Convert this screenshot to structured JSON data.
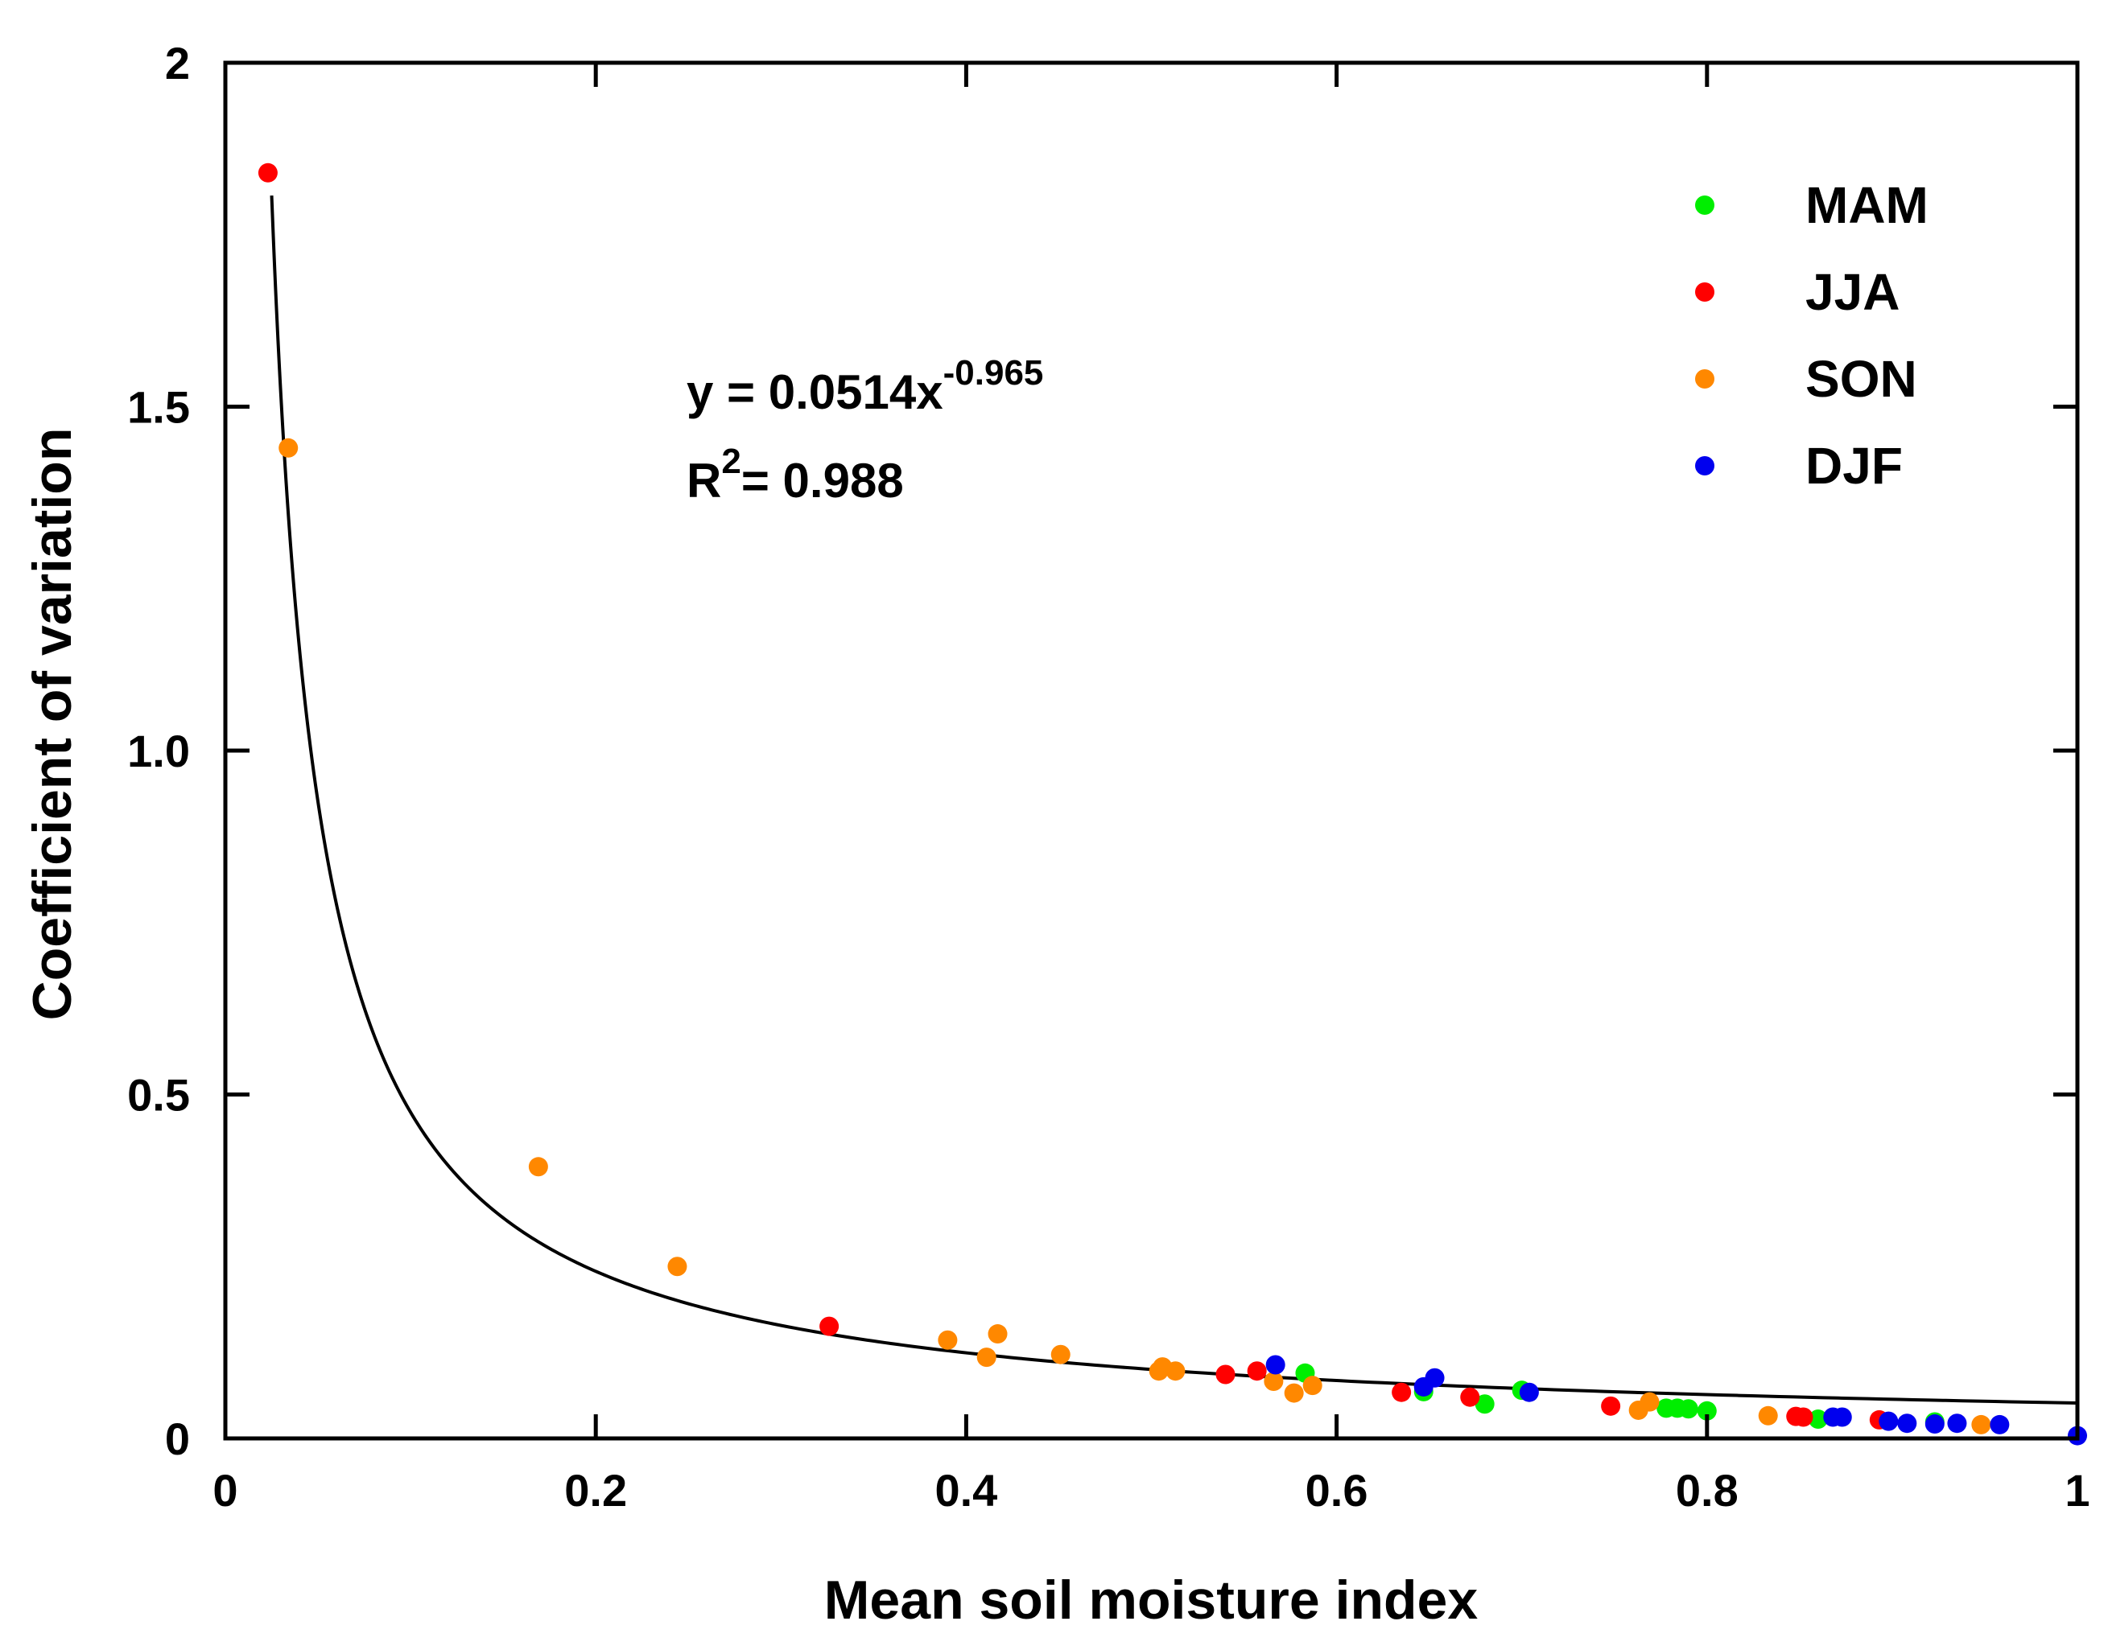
{
  "chart_data": {
    "type": "scatter",
    "title": "",
    "xlabel": "Mean soil moisture index",
    "ylabel": "Coefficient of variation",
    "xlim": [
      0,
      1
    ],
    "ylim": [
      0,
      2
    ],
    "x_ticks": [
      0,
      0.2,
      0.4,
      0.6,
      0.8,
      1
    ],
    "x_tick_labels": [
      "0",
      "0.2",
      "0.4",
      "0.6",
      "0.8",
      "1"
    ],
    "y_ticks": [
      0,
      0.5,
      1.0,
      1.5,
      2
    ],
    "y_tick_labels": [
      "0",
      "0.5",
      "1.0",
      "1.5",
      "2"
    ],
    "grid": false,
    "legend_position": "top-right",
    "fit": {
      "model": "power",
      "a": 0.0514,
      "b": -0.965,
      "x_range": [
        0.025,
        1
      ],
      "equation_prefix": "y = 0.0514x",
      "equation_exponent": "-0.965",
      "r2_prefix": "R",
      "r2_exponent": "2",
      "r2_suffix": "= 0.988",
      "color": "#000000"
    },
    "series": [
      {
        "name": "MAM",
        "color": "#00ee00",
        "points": [
          [
            0.583,
            0.095
          ],
          [
            0.647,
            0.068
          ],
          [
            0.68,
            0.05
          ],
          [
            0.7,
            0.07
          ],
          [
            0.778,
            0.044
          ],
          [
            0.784,
            0.044
          ],
          [
            0.79,
            0.043
          ],
          [
            0.8,
            0.04
          ],
          [
            0.86,
            0.028
          ],
          [
            0.923,
            0.024
          ]
        ]
      },
      {
        "name": "JJA",
        "color": "#ff0000",
        "points": [
          [
            0.023,
            1.84
          ],
          [
            0.326,
            0.163
          ],
          [
            0.54,
            0.093
          ],
          [
            0.557,
            0.098
          ],
          [
            0.635,
            0.067
          ],
          [
            0.672,
            0.06
          ],
          [
            0.748,
            0.047
          ],
          [
            0.848,
            0.032
          ],
          [
            0.852,
            0.031
          ],
          [
            0.893,
            0.027
          ]
        ]
      },
      {
        "name": "SON",
        "color": "#ff8800",
        "points": [
          [
            0.034,
            1.44
          ],
          [
            0.169,
            0.395
          ],
          [
            0.244,
            0.25
          ],
          [
            0.39,
            0.143
          ],
          [
            0.411,
            0.118
          ],
          [
            0.417,
            0.152
          ],
          [
            0.451,
            0.122
          ],
          [
            0.504,
            0.098
          ],
          [
            0.506,
            0.104
          ],
          [
            0.513,
            0.098
          ],
          [
            0.566,
            0.083
          ],
          [
            0.577,
            0.066
          ],
          [
            0.587,
            0.077
          ],
          [
            0.763,
            0.041
          ],
          [
            0.769,
            0.053
          ],
          [
            0.833,
            0.033
          ],
          [
            0.948,
            0.02
          ]
        ]
      },
      {
        "name": "DJF",
        "color": "#0000ee",
        "points": [
          [
            0.567,
            0.107
          ],
          [
            0.647,
            0.075
          ],
          [
            0.653,
            0.088
          ],
          [
            0.704,
            0.067
          ],
          [
            0.868,
            0.031
          ],
          [
            0.873,
            0.031
          ],
          [
            0.898,
            0.025
          ],
          [
            0.908,
            0.022
          ],
          [
            0.923,
            0.021
          ],
          [
            0.935,
            0.022
          ],
          [
            0.958,
            0.02
          ],
          [
            1.0,
            0.004
          ]
        ]
      }
    ]
  }
}
